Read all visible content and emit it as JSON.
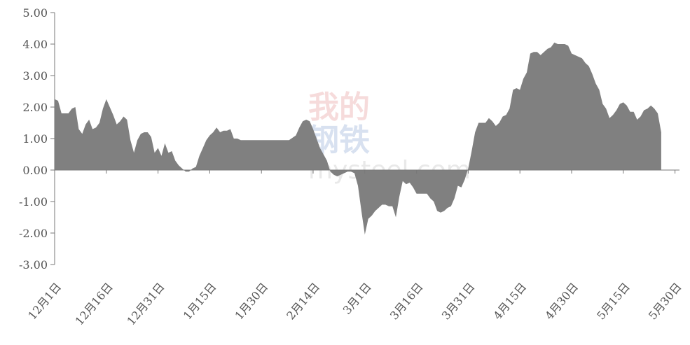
{
  "watermark": {
    "line1": "我的",
    "line2": "钢铁",
    "url": "mysteel.com"
  },
  "chart_data": {
    "type": "area",
    "title": "",
    "xlabel": "",
    "ylabel": "",
    "ylim": [
      -3,
      5
    ],
    "y_tick_labels": [
      "5.00",
      "4.00",
      "3.00",
      "2.00",
      "1.00",
      "0.00",
      "-1.00",
      "-2.00",
      "-3.00"
    ],
    "y_tick_values": [
      5,
      4,
      3,
      2,
      1,
      0,
      -1,
      -2,
      -3
    ],
    "x_tick_labels": [
      "12月1日",
      "12月16日",
      "12月31日",
      "1月15日",
      "1月30日",
      "2月14日",
      "3月1日",
      "3月16日",
      "3月31日",
      "4月15日",
      "4月30日",
      "5月15日",
      "5月30日"
    ],
    "x_tick_days": [
      0,
      15,
      30,
      45,
      60,
      75,
      90,
      105,
      120,
      135,
      150,
      165,
      180
    ],
    "grid": false,
    "fill_color": "#808080",
    "series": [
      {
        "day": [
          0,
          1,
          2,
          3,
          4,
          5,
          6,
          7,
          8,
          9,
          10,
          11,
          12,
          13,
          14,
          15,
          16,
          17,
          18,
          19,
          20,
          21,
          22,
          23,
          24,
          25,
          26,
          27,
          28,
          29,
          30,
          31,
          32,
          33,
          34,
          35,
          36,
          37,
          38,
          39,
          40,
          41,
          42,
          43,
          44,
          45,
          46,
          47,
          48,
          49,
          50,
          51,
          52,
          53,
          54,
          55,
          56,
          58,
          60,
          62,
          64,
          66,
          68,
          70,
          71,
          72,
          73,
          74,
          75,
          76,
          77,
          78,
          79,
          80,
          81,
          82,
          83,
          84,
          85,
          86,
          87,
          88,
          89,
          90,
          91,
          92,
          93,
          94,
          95,
          96,
          97,
          98,
          99,
          100,
          101,
          102,
          103,
          104,
          105,
          106,
          107,
          108,
          109,
          110,
          111,
          112,
          113,
          114,
          115,
          116,
          117,
          118,
          119,
          120,
          121,
          122,
          123,
          124,
          125,
          126,
          127,
          128,
          129,
          130,
          131,
          132,
          133,
          134,
          135,
          136,
          137,
          138,
          139,
          140,
          141,
          142,
          143,
          144,
          145,
          146,
          147,
          148,
          149,
          150,
          151,
          152,
          153,
          154,
          155,
          156,
          157,
          158,
          159,
          160,
          161,
          162,
          163,
          164,
          165,
          166,
          167,
          168,
          169,
          170,
          171,
          172,
          173,
          174,
          175,
          176
        ],
        "values": [
          2.25,
          2.2,
          1.8,
          1.8,
          1.8,
          1.95,
          2.0,
          1.3,
          1.15,
          1.45,
          1.6,
          1.3,
          1.35,
          1.5,
          1.95,
          2.25,
          2.0,
          1.75,
          1.45,
          1.55,
          1.7,
          1.6,
          0.95,
          0.55,
          0.95,
          1.15,
          1.2,
          1.2,
          1.05,
          0.55,
          0.7,
          0.45,
          0.85,
          0.55,
          0.6,
          0.3,
          0.15,
          0.05,
          -0.05,
          -0.05,
          0.05,
          0.1,
          0.45,
          0.7,
          0.95,
          1.1,
          1.2,
          1.35,
          1.2,
          1.25,
          1.25,
          1.3,
          1.0,
          1.0,
          0.95,
          0.95,
          0.95,
          0.95,
          0.95,
          0.95,
          0.95,
          0.95,
          0.95,
          1.1,
          1.35,
          1.55,
          1.6,
          1.55,
          1.3,
          1.0,
          0.7,
          0.5,
          0.3,
          -0.05,
          -0.15,
          -0.2,
          -0.15,
          -0.1,
          -0.05,
          -0.05,
          -0.1,
          -0.5,
          -1.3,
          -2.05,
          -1.55,
          -1.45,
          -1.3,
          -1.2,
          -1.1,
          -1.1,
          -1.15,
          -1.15,
          -1.5,
          -0.85,
          -0.35,
          -0.45,
          -0.4,
          -0.55,
          -0.75,
          -0.75,
          -0.75,
          -0.75,
          -0.9,
          -1.0,
          -1.3,
          -1.35,
          -1.3,
          -1.2,
          -1.15,
          -0.9,
          -0.5,
          -0.55,
          -0.3,
          0.05,
          0.6,
          1.2,
          1.5,
          1.5,
          1.5,
          1.65,
          1.55,
          1.4,
          1.5,
          1.7,
          1.75,
          1.95,
          2.55,
          2.6,
          2.55,
          2.9,
          3.1,
          3.7,
          3.75,
          3.75,
          3.65,
          3.75,
          3.85,
          3.9,
          4.05,
          4.0,
          4.0,
          4.0,
          3.95,
          3.7,
          3.65,
          3.6,
          3.55,
          3.4,
          3.3,
          3.05,
          2.75,
          2.55,
          2.1,
          1.95,
          1.65,
          1.75,
          1.9,
          2.1,
          2.15,
          2.05,
          1.85,
          1.85,
          1.6,
          1.7,
          1.9,
          1.95,
          2.05,
          1.95,
          1.8,
          1.2,
          0
        ]
      }
    ]
  }
}
